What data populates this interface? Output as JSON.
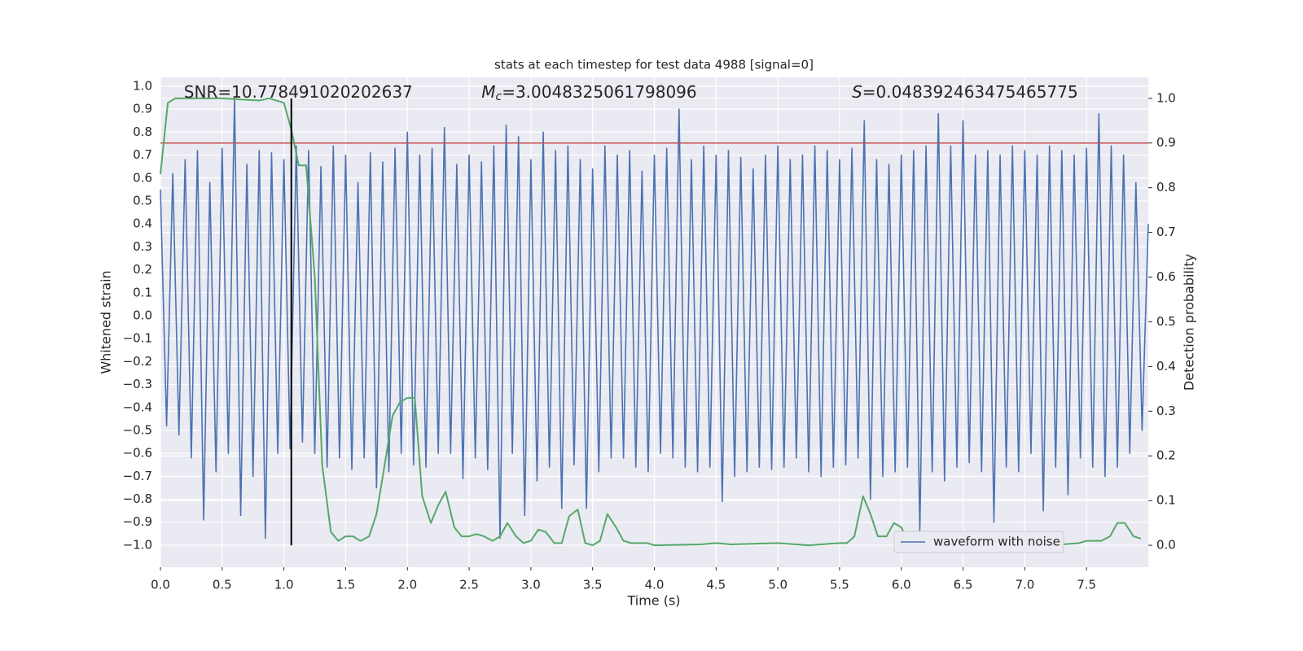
{
  "chart_data": {
    "type": "line",
    "title": "stats at each timestep for test data 4988 [signal=0]",
    "xlabel": "Time (s)",
    "ylabel": "Whitened strain",
    "y2label": "Detection probability",
    "grid": true,
    "legend": "lower right",
    "xlim": [
      0,
      8.0
    ],
    "ylim": [
      -1.096,
      1.039
    ],
    "y2lim": [
      -0.049,
      1.047
    ],
    "xticks": [
      {
        "value": 0,
        "label": "0.0"
      },
      {
        "value": 0.5,
        "label": "0.5"
      },
      {
        "value": 1,
        "label": "1.0"
      },
      {
        "value": 1.5,
        "label": "1.5"
      },
      {
        "value": 2,
        "label": "2.0"
      },
      {
        "value": 2.5,
        "label": "2.5"
      },
      {
        "value": 3,
        "label": "3.0"
      },
      {
        "value": 3.5,
        "label": "3.5"
      },
      {
        "value": 4,
        "label": "4.0"
      },
      {
        "value": 4.5,
        "label": "4.5"
      },
      {
        "value": 5,
        "label": "5.0"
      },
      {
        "value": 5.5,
        "label": "5.5"
      },
      {
        "value": 6,
        "label": "6.0"
      },
      {
        "value": 6.5,
        "label": "6.5"
      },
      {
        "value": 7,
        "label": "7.0"
      },
      {
        "value": 7.5,
        "label": "7.5"
      }
    ],
    "yticks": [
      {
        "value": -1,
        "label": "−1.0"
      },
      {
        "value": -0.9,
        "label": "−0.9"
      },
      {
        "value": -0.8,
        "label": "−0.8"
      },
      {
        "value": -0.7,
        "label": "−0.7"
      },
      {
        "value": -0.6,
        "label": "−0.6"
      },
      {
        "value": -0.5,
        "label": "−0.5"
      },
      {
        "value": -0.4,
        "label": "−0.4"
      },
      {
        "value": -0.3,
        "label": "−0.3"
      },
      {
        "value": -0.2,
        "label": "−0.2"
      },
      {
        "value": -0.1,
        "label": "−0.1"
      },
      {
        "value": 0,
        "label": "0.0"
      },
      {
        "value": 0.1,
        "label": "0.1"
      },
      {
        "value": 0.2,
        "label": "0.2"
      },
      {
        "value": 0.3,
        "label": "0.3"
      },
      {
        "value": 0.4,
        "label": "0.4"
      },
      {
        "value": 0.5,
        "label": "0.5"
      },
      {
        "value": 0.6,
        "label": "0.6"
      },
      {
        "value": 0.7,
        "label": "0.7"
      },
      {
        "value": 0.8,
        "label": "0.8"
      },
      {
        "value": 0.9,
        "label": "0.9"
      },
      {
        "value": 1,
        "label": "1.0"
      }
    ],
    "y2ticks": [
      {
        "value": 0,
        "label": "0.0"
      },
      {
        "value": 0.1,
        "label": "0.1"
      },
      {
        "value": 0.2,
        "label": "0.2"
      },
      {
        "value": 0.3,
        "label": "0.3"
      },
      {
        "value": 0.4,
        "label": "0.4"
      },
      {
        "value": 0.5,
        "label": "0.5"
      },
      {
        "value": 0.6,
        "label": "0.6"
      },
      {
        "value": 0.7,
        "label": "0.7"
      },
      {
        "value": 0.8,
        "label": "0.8"
      },
      {
        "value": 0.9,
        "label": "0.9"
      },
      {
        "value": 1,
        "label": "1.0"
      }
    ],
    "annotations": [
      {
        "text": "SNR=10.778491020202637"
      },
      {
        "symbol": "M",
        "subscript": "c",
        "text": "=3.0048325061798096"
      },
      {
        "symbol": "S",
        "text": "=0.048392463475465775"
      }
    ],
    "hline": {
      "y": 0.9,
      "axis": "y2",
      "color": "#c44e52"
    },
    "vline": {
      "x": 1.06,
      "ymin": 0,
      "ymax": 1,
      "axis": "y2",
      "color": "#000000"
    },
    "series": [
      {
        "name": "waveform with noise",
        "color": "#4c72b0",
        "x": [
          0,
          0.05,
          0.1,
          0.15,
          0.2,
          0.25,
          0.3,
          0.35,
          0.4,
          0.45,
          0.5,
          0.55,
          0.6,
          0.65,
          0.7,
          0.75,
          0.8,
          0.85,
          0.9,
          0.95,
          1,
          1.05,
          1.1,
          1.15,
          1.2,
          1.25,
          1.3,
          1.35,
          1.4,
          1.45,
          1.5,
          1.55,
          1.6,
          1.65,
          1.7,
          1.75,
          1.8,
          1.85,
          1.9,
          1.95,
          2,
          2.05,
          2.1,
          2.15,
          2.2,
          2.25,
          2.3,
          2.35,
          2.4,
          2.45,
          2.5,
          2.55,
          2.6,
          2.65,
          2.7,
          2.75,
          2.8,
          2.85,
          2.9,
          2.95,
          3,
          3.05,
          3.1,
          3.15,
          3.2,
          3.25,
          3.3,
          3.35,
          3.4,
          3.45,
          3.5,
          3.55,
          3.6,
          3.65,
          3.7,
          3.75,
          3.8,
          3.85,
          3.9,
          3.95,
          4,
          4.05,
          4.1,
          4.15,
          4.2,
          4.25,
          4.3,
          4.35,
          4.4,
          4.45,
          4.5,
          4.55,
          4.6,
          4.65,
          4.7,
          4.75,
          4.8,
          4.85,
          4.9,
          4.95,
          5,
          5.05,
          5.1,
          5.15,
          5.2,
          5.25,
          5.3,
          5.35,
          5.4,
          5.45,
          5.5,
          5.55,
          5.6,
          5.65,
          5.7,
          5.75,
          5.8,
          5.85,
          5.9,
          5.95,
          6,
          6.05,
          6.1,
          6.15,
          6.2,
          6.25,
          6.3,
          6.35,
          6.4,
          6.45,
          6.5,
          6.55,
          6.6,
          6.65,
          6.7,
          6.75,
          6.8,
          6.85,
          6.9,
          6.95,
          7,
          7.05,
          7.1,
          7.15,
          7.2,
          7.25,
          7.3,
          7.35,
          7.4,
          7.45,
          7.5,
          7.55,
          7.6,
          7.65,
          7.7,
          7.75,
          7.8,
          7.85,
          7.9,
          7.95,
          8
        ],
        "values": [
          0.55,
          -0.48,
          0.62,
          -0.52,
          0.68,
          -0.62,
          0.72,
          -0.89,
          0.58,
          -0.68,
          0.73,
          -0.6,
          0.95,
          -0.87,
          0.66,
          -0.7,
          0.72,
          -0.97,
          0.71,
          -0.6,
          0.68,
          -0.58,
          0.74,
          -0.55,
          0.72,
          -0.6,
          0.65,
          -0.66,
          0.74,
          -0.62,
          0.7,
          -0.67,
          0.58,
          -0.62,
          0.71,
          -0.75,
          0.67,
          -0.68,
          0.73,
          -0.6,
          0.8,
          -0.65,
          0.7,
          -0.66,
          0.73,
          -0.6,
          0.82,
          -0.6,
          0.66,
          -0.71,
          0.7,
          -0.62,
          0.67,
          -0.67,
          0.74,
          -0.97,
          0.83,
          -0.6,
          0.78,
          -0.87,
          0.68,
          -0.72,
          0.8,
          -0.66,
          0.72,
          -0.84,
          0.74,
          -0.65,
          0.68,
          -0.84,
          0.64,
          -0.68,
          0.74,
          -0.62,
          0.7,
          -0.62,
          0.72,
          -0.66,
          0.63,
          -0.68,
          0.7,
          -0.6,
          0.73,
          -0.62,
          0.9,
          -0.66,
          0.68,
          -0.68,
          0.74,
          -0.66,
          0.7,
          -0.81,
          0.72,
          -0.7,
          0.69,
          -0.68,
          0.64,
          -0.66,
          0.7,
          -0.67,
          0.74,
          -0.66,
          0.68,
          -0.62,
          0.7,
          -0.68,
          0.74,
          -0.7,
          0.72,
          -0.66,
          0.68,
          -0.65,
          0.73,
          -0.62,
          0.85,
          -0.8,
          0.68,
          -0.7,
          0.66,
          -0.68,
          0.7,
          -0.66,
          0.72,
          -0.94,
          0.74,
          -0.68,
          0.88,
          -0.72,
          0.74,
          -0.66,
          0.85,
          -0.64,
          0.7,
          -0.68,
          0.72,
          -0.9,
          0.7,
          -0.66,
          0.74,
          -0.68,
          0.72,
          -0.6,
          0.7,
          -0.85,
          0.74,
          -0.66,
          0.72,
          -0.78,
          0.7,
          -0.62,
          0.73,
          -0.66,
          0.88,
          -0.7,
          0.74,
          -0.66,
          0.7,
          -0.6,
          0.58,
          -0.5,
          0.4
        ]
      },
      {
        "color": "#55a868",
        "axis": "y2",
        "x": [
          0,
          0.06,
          0.12,
          0.5,
          0.8,
          0.88,
          1.0,
          1.06,
          1.12,
          1.18,
          1.25,
          1.31,
          1.38,
          1.44,
          1.5,
          1.56,
          1.62,
          1.69,
          1.75,
          1.81,
          1.88,
          1.94,
          2.0,
          2.06,
          2.12,
          2.19,
          2.25,
          2.31,
          2.38,
          2.44,
          2.5,
          2.56,
          2.62,
          2.69,
          2.75,
          2.81,
          2.88,
          2.94,
          3.0,
          3.06,
          3.12,
          3.19,
          3.25,
          3.31,
          3.38,
          3.44,
          3.5,
          3.56,
          3.62,
          3.69,
          3.75,
          3.81,
          3.94,
          4.0,
          4.38,
          4.5,
          4.62,
          5.0,
          5.25,
          5.5,
          5.56,
          5.62,
          5.69,
          5.75,
          5.81,
          5.88,
          5.94,
          6.0,
          6.06,
          6.12,
          7.0,
          7.31,
          7.44,
          7.5,
          7.56,
          7.62,
          7.69,
          7.75,
          7.81,
          7.88,
          7.94
        ],
        "values": [
          0.83,
          0.99,
          1.0,
          1.0,
          0.995,
          1.0,
          0.99,
          0.93,
          0.85,
          0.85,
          0.6,
          0.18,
          0.03,
          0.01,
          0.02,
          0.02,
          0.01,
          0.02,
          0.07,
          0.17,
          0.29,
          0.32,
          0.33,
          0.33,
          0.11,
          0.05,
          0.09,
          0.12,
          0.04,
          0.02,
          0.02,
          0.025,
          0.02,
          0.01,
          0.02,
          0.05,
          0.02,
          0.005,
          0.01,
          0.035,
          0.03,
          0.005,
          0.005,
          0.065,
          0.08,
          0.005,
          0.0,
          0.01,
          0.07,
          0.04,
          0.01,
          0.005,
          0.005,
          0.0,
          0.002,
          0.005,
          0.002,
          0.005,
          0.0,
          0.005,
          0.005,
          0.02,
          0.11,
          0.07,
          0.02,
          0.02,
          0.05,
          0.04,
          0.005,
          0.0,
          0.0,
          0.002,
          0.005,
          0.01,
          0.01,
          0.01,
          0.02,
          0.05,
          0.05,
          0.02,
          0.015
        ]
      }
    ]
  }
}
